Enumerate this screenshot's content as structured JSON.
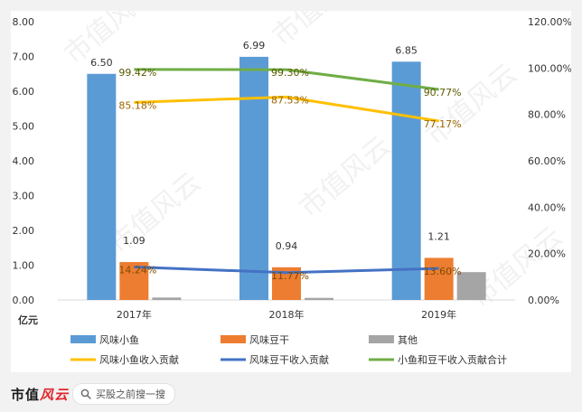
{
  "chart_data": {
    "type": "bar",
    "categories": [
      "2017年",
      "2018年",
      "2019年"
    ],
    "left_axis": {
      "range": [
        0,
        8
      ],
      "step": 1,
      "tick_labels": [
        "0.00",
        "1.00",
        "2.00",
        "3.00",
        "4.00",
        "5.00",
        "6.00",
        "7.00",
        "8.00"
      ]
    },
    "right_axis": {
      "range": [
        0,
        120
      ],
      "step": 20,
      "tick_labels": [
        "0.00%",
        "20.00%",
        "40.00%",
        "60.00%",
        "80.00%",
        "100.00%",
        "120.00%"
      ]
    },
    "ylabel": "亿元",
    "grid": false,
    "legend_position": "bottom",
    "bar_series": [
      {
        "name": "风味小鱼",
        "color": "#5b9bd5",
        "values": [
          6.5,
          6.99,
          6.85
        ],
        "labels": [
          "6.50",
          "6.99",
          "6.85"
        ]
      },
      {
        "name": "风味豆干",
        "color": "#ed7d31",
        "values": [
          1.09,
          0.94,
          1.21
        ],
        "labels": [
          "1.09",
          "0.94",
          "1.21"
        ]
      },
      {
        "name": "其他",
        "color": "#a5a5a5",
        "values": [
          0.07,
          0.06,
          0.8
        ]
      }
    ],
    "line_series": [
      {
        "name": "风味小鱼收入贡献",
        "color": "#ffc000",
        "label_color": "#9c6500",
        "values": [
          85.18,
          87.53,
          77.17
        ],
        "labels": [
          "85.18%",
          "87.53%",
          "77.17%"
        ]
      },
      {
        "name": "风味豆干收入贡献",
        "color": "#4472c4",
        "label_color": "#7f4c00",
        "values": [
          14.24,
          11.77,
          13.6
        ],
        "labels": [
          "14.24%",
          "11.77%",
          "13.60%"
        ]
      },
      {
        "name": "小鱼和豆干收入贡献合计",
        "color": "#70ad47",
        "label_color": "#5b5b00",
        "values": [
          99.42,
          99.3,
          90.77
        ],
        "labels": [
          "99.42%",
          "99.30%",
          "90.77%"
        ]
      }
    ]
  },
  "footer": {
    "brand_main": "市值",
    "brand_accent": "风云",
    "search_label": "买股之前搜一搜"
  },
  "watermark": "市值风云"
}
